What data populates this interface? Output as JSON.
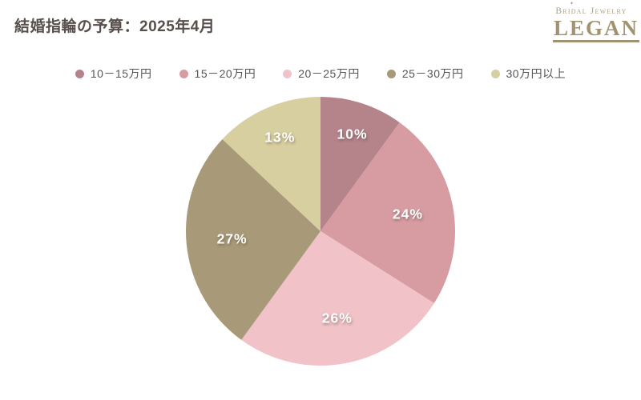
{
  "page": {
    "title": "結婚指輪の予算：2025年4月"
  },
  "logo": {
    "tagline": "Bridal Jewelry",
    "brand": "LEGAN",
    "sparkle": "✦",
    "color": "#a29270"
  },
  "chart_data": {
    "type": "pie",
    "title": "結婚指輪の予算：2025年4月",
    "unit": "%",
    "start_angle_deg": 0,
    "direction": "clockwise",
    "legend_position": "top-center",
    "slices": [
      {
        "label": "10－15万円",
        "value": 10,
        "display": "10%",
        "color": "#b5838a"
      },
      {
        "label": "15－20万円",
        "value": 24,
        "display": "24%",
        "color": "#d69ca2"
      },
      {
        "label": "20－25万円",
        "value": 26,
        "display": "26%",
        "color": "#f1c3c8"
      },
      {
        "label": "25－30万円",
        "value": 27,
        "display": "27%",
        "color": "#a89a78"
      },
      {
        "label": "30万円以上",
        "value": 13,
        "display": "13%",
        "color": "#d8cfa0"
      }
    ]
  },
  "colors": {
    "title_text": "#584f4d",
    "legend_text": "#555555",
    "background": "#ffffff"
  }
}
